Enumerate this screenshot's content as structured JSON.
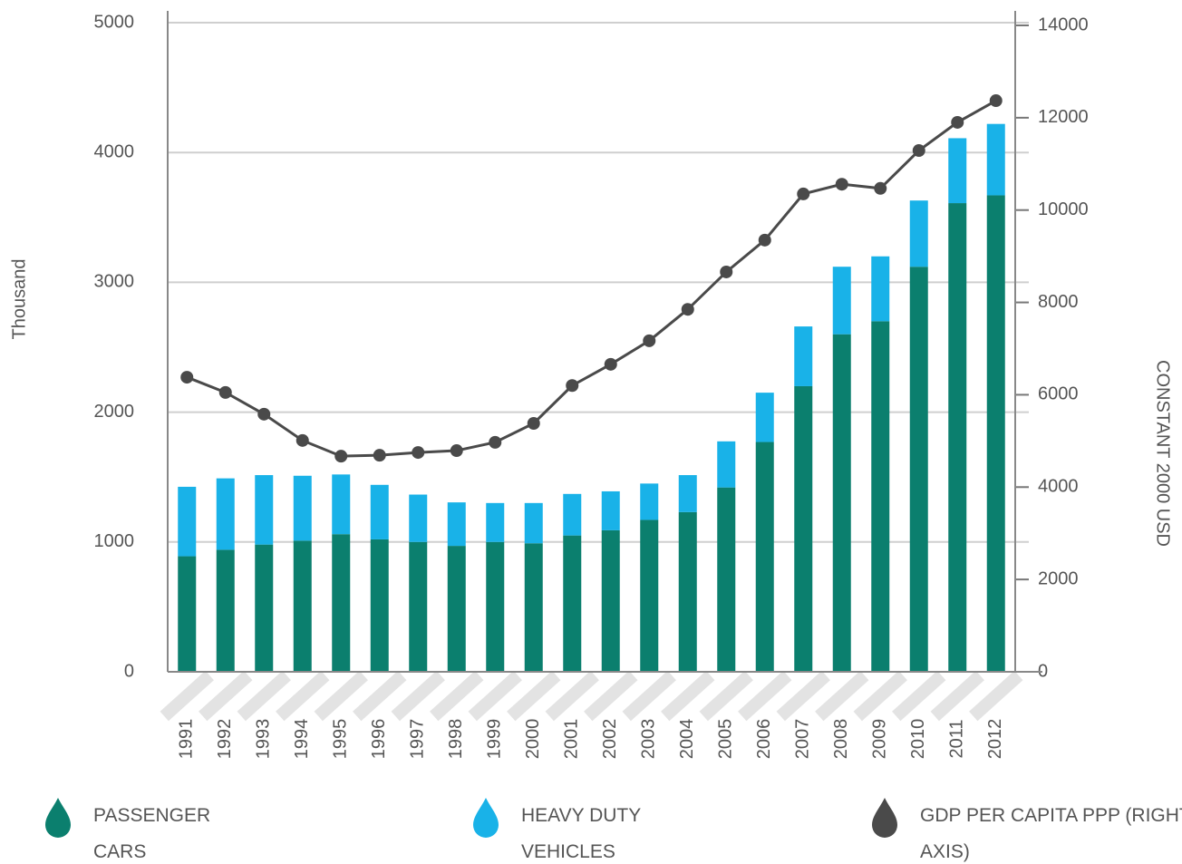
{
  "chart_data": {
    "type": "bar",
    "categories": [
      "1991",
      "1992",
      "1993",
      "1994",
      "1995",
      "1996",
      "1997",
      "1998",
      "1999",
      "2000",
      "2001",
      "2002",
      "2003",
      "2004",
      "2005",
      "2006",
      "2007",
      "2008",
      "2009",
      "2010",
      "2011",
      "2012"
    ],
    "series": [
      {
        "name": "PASSENGER CARS",
        "color": "#0b7f6e",
        "values": [
          890,
          940,
          980,
          1010,
          1060,
          1020,
          1000,
          970,
          1000,
          990,
          1050,
          1090,
          1170,
          1230,
          1420,
          1770,
          2200,
          2600,
          2700,
          3120,
          3610,
          3670
        ]
      },
      {
        "name": "HEAVY DUTY VEHICLES",
        "color": "#19b2e8",
        "values": [
          535,
          550,
          535,
          500,
          460,
          420,
          365,
          335,
          300,
          310,
          320,
          300,
          280,
          285,
          355,
          380,
          460,
          520,
          500,
          510,
          500,
          550
        ]
      },
      {
        "name": "GDP PER CAPITA PPP (RIGHT AXIS)",
        "color": "#4a4a4a",
        "axis": "y2",
        "type": "line",
        "values": [
          6380,
          6050,
          5580,
          5010,
          4670,
          4690,
          4750,
          4790,
          4970,
          5380,
          6200,
          6660,
          7170,
          7850,
          8660,
          9350,
          10350,
          10560,
          10470,
          11290,
          11900,
          12370
        ]
      }
    ],
    "ylabel": "Thousand",
    "y2label": "CONSTANT 2000 USD",
    "ylim": [
      0,
      5000
    ],
    "yticks": [
      0,
      1000,
      2000,
      3000,
      4000,
      5000
    ],
    "y2lim": [
      0,
      14000
    ],
    "y2ticks": [
      0,
      2000,
      4000,
      6000,
      8000,
      10000,
      12000,
      14000
    ],
    "grid": true,
    "stacked": true,
    "legend": "bottom"
  }
}
